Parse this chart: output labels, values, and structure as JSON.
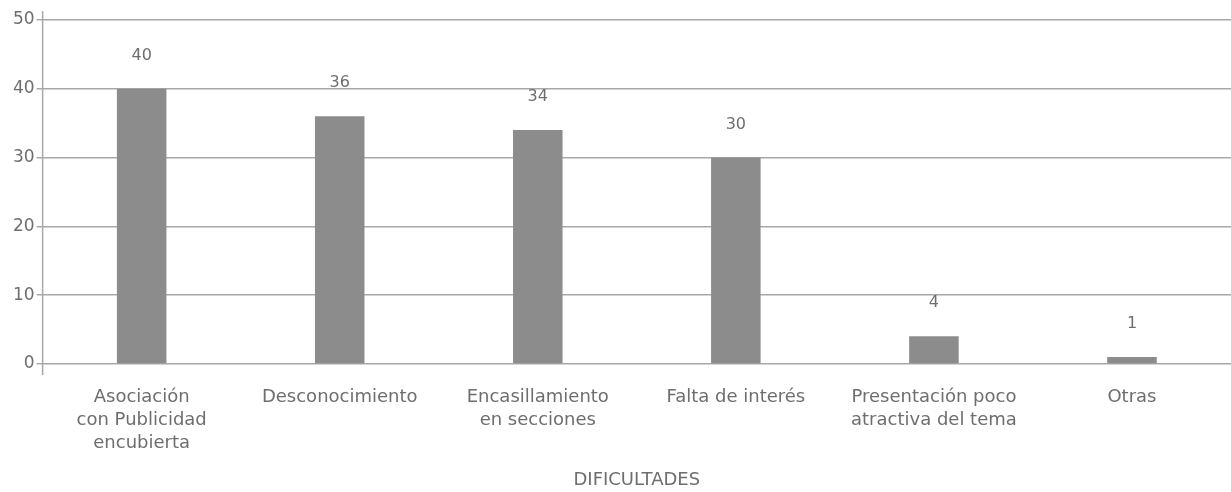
{
  "chart_data": {
    "type": "bar",
    "xlabel": "DIFICULTADES",
    "categories": [
      "Asociación\ncon Publicidad\nencubierta",
      "Desconocimiento",
      "Encasillamiento\nen secciones",
      "Falta de interés",
      "Presentación poco\natractiva del tema",
      "Otras"
    ],
    "values": [
      40,
      36,
      34,
      30,
      4,
      1
    ],
    "color": "#8c8c8c",
    "ylim": [
      0,
      50
    ],
    "yticks": [
      0,
      10,
      20,
      30,
      40,
      50
    ],
    "grid": "y",
    "data_labels": true
  }
}
